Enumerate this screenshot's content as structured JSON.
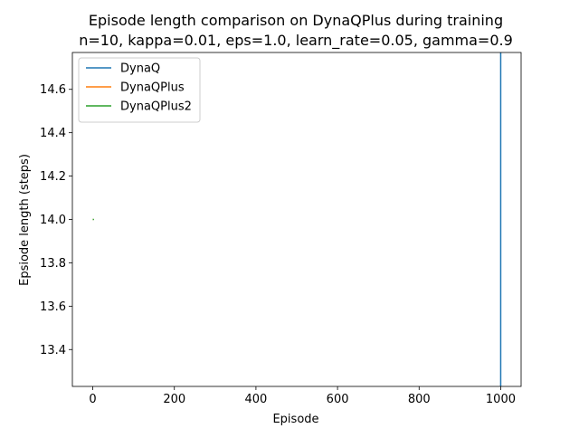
{
  "chart_data": {
    "type": "line",
    "title": "Episode length comparison on DynaQPlus during training",
    "subtitle": "n=10, kappa=0.01, eps=1.0, learn_rate=0.05, gamma=0.9",
    "xlabel": "Episode",
    "ylabel": "Epsiode length (steps)",
    "xlim": [
      -50,
      1050
    ],
    "ylim": [
      13.23,
      14.77
    ],
    "xticks": [
      0,
      200,
      400,
      600,
      800,
      1000
    ],
    "xtick_labels": [
      "0",
      "200",
      "400",
      "600",
      "800",
      "1000"
    ],
    "yticks": [
      13.4,
      13.6,
      13.8,
      14.0,
      14.2,
      14.4,
      14.6
    ],
    "ytick_labels": [
      "13.4",
      "13.6",
      "13.8",
      "14.0",
      "14.2",
      "14.4",
      "14.6"
    ],
    "grid": false,
    "legend_position": "upper-left",
    "series": [
      {
        "name": "DynaQ",
        "color": "#1f77b4",
        "points": [
          [
            1000,
            13.23
          ],
          [
            1000,
            14.77
          ]
        ]
      },
      {
        "name": "DynaQPlus",
        "color": "#ff7f0e",
        "points": [
          [
            0,
            14.0
          ],
          [
            1,
            14.0
          ]
        ]
      },
      {
        "name": "DynaQPlus2",
        "color": "#2ca02c",
        "points": [
          [
            0,
            14.0
          ],
          [
            3,
            14.0
          ]
        ]
      }
    ]
  }
}
